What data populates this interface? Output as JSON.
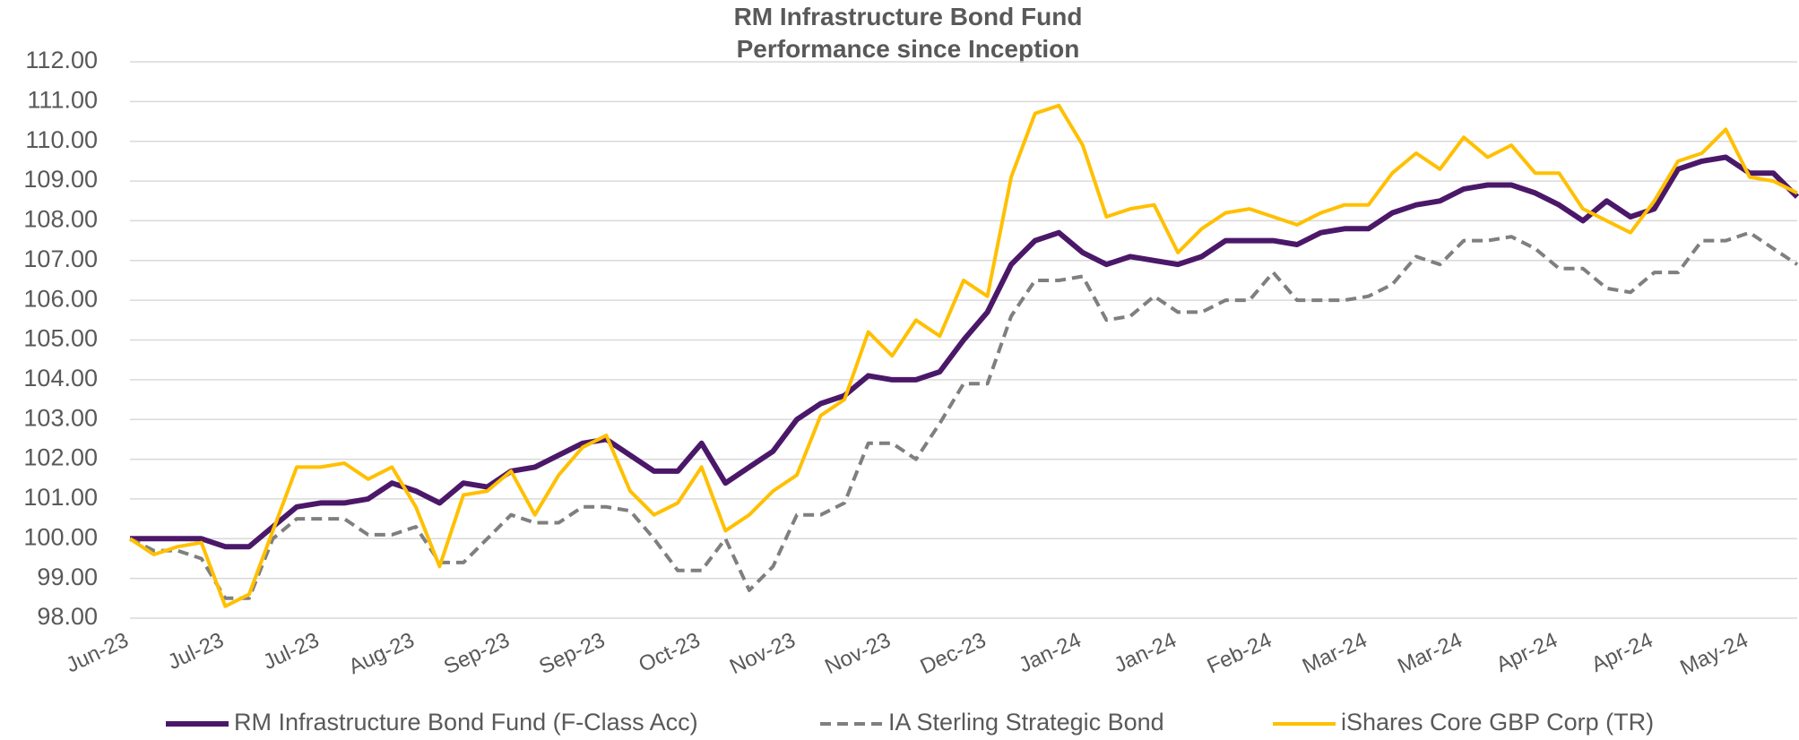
{
  "chart_data": {
    "type": "line",
    "title": "RM Infrastructure Bond Fund",
    "subtitle": "Performance since Inception",
    "categories": [
      "Jun-23",
      null,
      null,
      null,
      "Jul-23",
      null,
      null,
      null,
      "Jul-23",
      null,
      null,
      null,
      "Aug-23",
      null,
      null,
      null,
      "Sep-23",
      null,
      null,
      null,
      "Sep-23",
      null,
      null,
      null,
      "Oct-23",
      null,
      null,
      null,
      "Nov-23",
      null,
      null,
      null,
      "Nov-23",
      null,
      null,
      null,
      "Dec-23",
      null,
      null,
      null,
      "Jan-24",
      null,
      null,
      null,
      "Jan-24",
      null,
      null,
      null,
      "Feb-24",
      null,
      null,
      null,
      "Mar-24",
      null,
      null,
      null,
      "Mar-24",
      null,
      null,
      null,
      "Apr-24",
      null,
      null,
      null,
      "Apr-24",
      null,
      null,
      null,
      "May-24",
      null,
      null
    ],
    "series": [
      {
        "name": "RM Infrastructure Bond Fund (F-Class Acc)",
        "color": "#4b1869",
        "dash": false,
        "values": [
          100.0,
          100.0,
          100.0,
          100.0,
          99.8,
          99.8,
          100.3,
          100.8,
          100.9,
          100.9,
          101.0,
          101.4,
          101.2,
          100.9,
          101.4,
          101.3,
          101.7,
          101.8,
          102.1,
          102.4,
          102.5,
          102.1,
          101.7,
          101.7,
          102.4,
          101.4,
          101.8,
          102.2,
          103.0,
          103.4,
          103.6,
          104.1,
          104.0,
          104.0,
          104.2,
          105.0,
          105.7,
          106.9,
          107.5,
          107.7,
          107.2,
          106.9,
          107.1,
          107.0,
          106.9,
          107.1,
          107.5,
          107.5,
          107.5,
          107.4,
          107.7,
          107.8,
          107.8,
          108.2,
          108.4,
          108.5,
          108.8,
          108.9,
          108.9,
          108.7,
          108.4,
          108.0,
          108.5,
          108.1,
          108.3,
          109.3,
          109.5,
          109.6,
          109.2,
          109.2,
          108.6
        ]
      },
      {
        "name": "IA Sterling Strategic Bond",
        "color": "#7f7f7f",
        "dash": true,
        "values": [
          100.0,
          99.7,
          99.7,
          99.5,
          98.5,
          98.5,
          100.0,
          100.5,
          100.5,
          100.5,
          100.1,
          100.1,
          100.3,
          99.4,
          99.4,
          100.0,
          100.6,
          100.4,
          100.4,
          100.8,
          100.8,
          100.7,
          100.0,
          99.2,
          99.2,
          100.0,
          98.7,
          99.3,
          100.6,
          100.6,
          100.9,
          102.4,
          102.4,
          102.0,
          102.9,
          103.9,
          103.9,
          105.6,
          106.5,
          106.5,
          106.6,
          105.5,
          105.6,
          106.1,
          105.7,
          105.7,
          106.0,
          106.0,
          106.7,
          106.0,
          106.0,
          106.0,
          106.1,
          106.4,
          107.1,
          106.9,
          107.5,
          107.5,
          107.6,
          107.3,
          106.8,
          106.8,
          106.3,
          106.2,
          106.7,
          106.7,
          107.5,
          107.5,
          107.7,
          107.3,
          106.9
        ]
      },
      {
        "name": "iShares Core GBP Corp (TR)",
        "color": "#ffc000",
        "dash": false,
        "values": [
          100.0,
          99.6,
          99.8,
          99.9,
          98.3,
          98.6,
          100.2,
          101.8,
          101.8,
          101.9,
          101.5,
          101.8,
          100.8,
          99.3,
          101.1,
          101.2,
          101.7,
          100.6,
          101.6,
          102.3,
          102.6,
          101.2,
          100.6,
          100.9,
          101.8,
          100.2,
          100.6,
          101.2,
          101.6,
          103.1,
          103.5,
          105.2,
          104.6,
          105.5,
          105.1,
          106.5,
          106.1,
          109.1,
          110.7,
          110.9,
          109.9,
          108.1,
          108.3,
          108.4,
          107.2,
          107.8,
          108.2,
          108.3,
          108.1,
          107.9,
          108.2,
          108.4,
          108.4,
          109.2,
          109.7,
          109.3,
          110.1,
          109.6,
          109.9,
          109.2,
          109.2,
          108.3,
          108.0,
          107.7,
          108.5,
          109.5,
          109.7,
          110.3,
          109.1,
          109.0,
          108.7
        ]
      }
    ],
    "ylim": [
      98,
      112
    ],
    "yticks": [
      {
        "value": 98,
        "label": "98.00"
      },
      {
        "value": 99,
        "label": "99.00"
      },
      {
        "value": 100,
        "label": "100.00"
      },
      {
        "value": 101,
        "label": "101.00"
      },
      {
        "value": 102,
        "label": "102.00"
      },
      {
        "value": 103,
        "label": "103.00"
      },
      {
        "value": 104,
        "label": "104.00"
      },
      {
        "value": 105,
        "label": "105.00"
      },
      {
        "value": 106,
        "label": "106.00"
      },
      {
        "value": 107,
        "label": "107.00"
      },
      {
        "value": 108,
        "label": "108.00"
      },
      {
        "value": 109,
        "label": "109.00"
      },
      {
        "value": 110,
        "label": "110.00"
      },
      {
        "value": 111,
        "label": "111.00"
      },
      {
        "value": 112,
        "label": "112.00"
      }
    ],
    "grid": true,
    "legend": "bottom"
  }
}
